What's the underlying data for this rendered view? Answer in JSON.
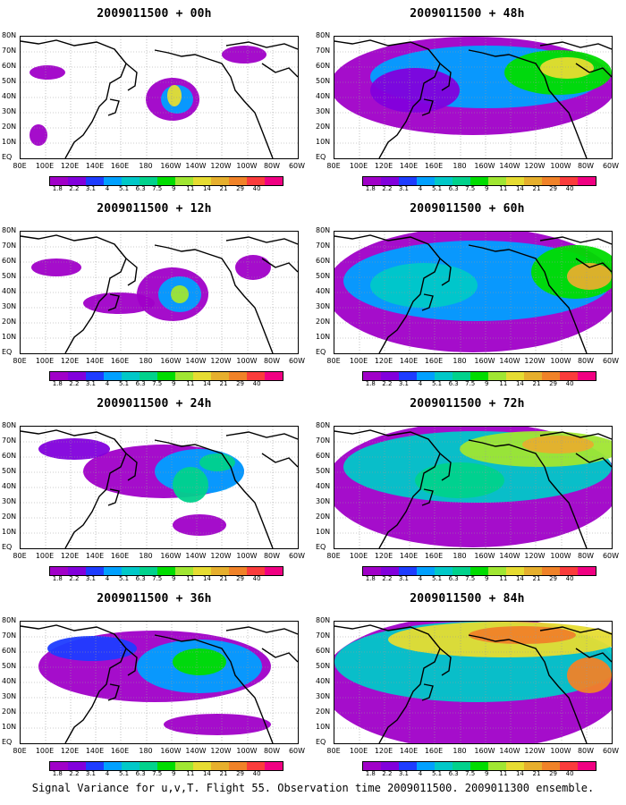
{
  "panels": [
    {
      "title": "2009011500 + 00h",
      "level": 0
    },
    {
      "title": "2009011500 + 48h",
      "level": 4
    },
    {
      "title": "2009011500 + 12h",
      "level": 1
    },
    {
      "title": "2009011500 + 60h",
      "level": 5
    },
    {
      "title": "2009011500 + 24h",
      "level": 2
    },
    {
      "title": "2009011500 + 72h",
      "level": 6
    },
    {
      "title": "2009011500 + 36h",
      "level": 3
    },
    {
      "title": "2009011500 + 84h",
      "level": 7
    }
  ],
  "lat_labels": [
    "80N",
    "70N",
    "60N",
    "50N",
    "40N",
    "30N",
    "20N",
    "10N",
    "EQ"
  ],
  "lon_labels": [
    "80E",
    "100E",
    "120E",
    "140E",
    "160E",
    "180",
    "160W",
    "140W",
    "120W",
    "100W",
    "80W",
    "60W"
  ],
  "colorbar": {
    "labels": [
      "1.8",
      "2.2",
      "3.1",
      "4",
      "5.1",
      "6.3",
      "7.5",
      "9",
      "11",
      "14",
      "21",
      "29",
      "40"
    ],
    "colors": [
      "#a000c8",
      "#8200dc",
      "#1e3cff",
      "#00a0ff",
      "#00c8c8",
      "#00d28c",
      "#00dc00",
      "#a0e632",
      "#e6dc32",
      "#e6af2d",
      "#f08228",
      "#fa3c3c",
      "#f00082"
    ]
  },
  "caption": "Signal Variance for u,v,T. Flight 55. Observation time 2009011500. 2009011300 ensemble."
}
